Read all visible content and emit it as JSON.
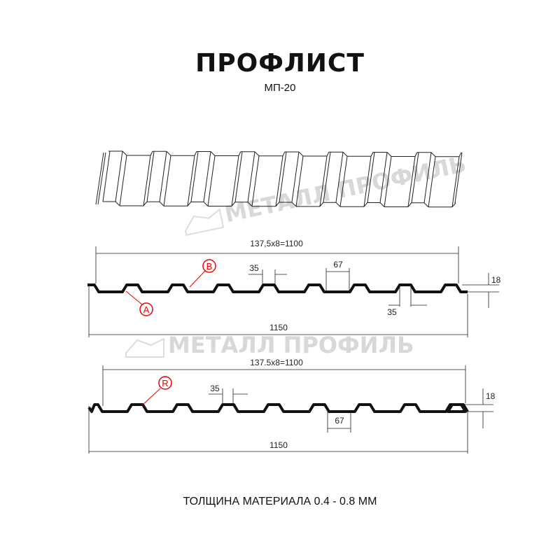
{
  "header": {
    "title": "ПРОФЛИСТ",
    "subtitle": "МП-20"
  },
  "watermark": {
    "text": "МЕТАЛЛ ПРОФИЛЬ",
    "color": "#d8d8d8"
  },
  "profile_top": {
    "pitch_dim": "137,5x8=1100",
    "width_dim": "1150",
    "top_width_dim": "35",
    "bottom_width_dim": "35",
    "rib_dim": "67",
    "height_dim": "18",
    "label_a": "A",
    "label_b": "B"
  },
  "profile_bottom": {
    "pitch_dim": "137.5x8=1100",
    "width_dim": "1150",
    "top_width_dim": "35",
    "rib_dim": "67",
    "height_dim": "18",
    "label_r": "R"
  },
  "footer": {
    "thickness": "ТОЛЩИНА МАТЕРИАЛА 0.4 - 0.8 ММ"
  },
  "colors": {
    "profile": "#111111",
    "callout": "#e00000",
    "dimension": "#222222"
  }
}
